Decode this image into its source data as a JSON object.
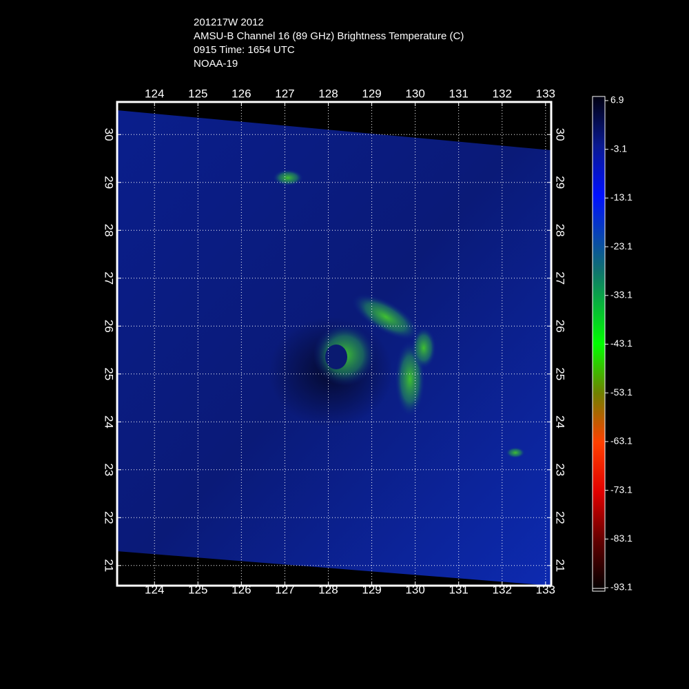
{
  "header": {
    "lines": [
      "201217W 2012",
      "AMSU-B Channel 16 (89 GHz) Brightness Temperature (C)",
      "0915 Time: 1654 UTC",
      "NOAA-19"
    ]
  },
  "map": {
    "xlim": [
      123.14,
      133.13
    ],
    "ylim": [
      20.58,
      30.68
    ],
    "xticks": [
      124,
      125,
      126,
      127,
      128,
      129,
      130,
      131,
      132,
      133
    ],
    "yticks": [
      21,
      22,
      23,
      24,
      25,
      26,
      27,
      28,
      29,
      30
    ],
    "grid": true
  },
  "colorbar": {
    "lim": [
      -93.1,
      6.9
    ],
    "ticks": [
      6.9,
      -3.1,
      -13.1,
      -23.1,
      -33.1,
      -43.1,
      -53.1,
      -63.1,
      -73.1,
      -83.1,
      -93.1
    ]
  }
}
